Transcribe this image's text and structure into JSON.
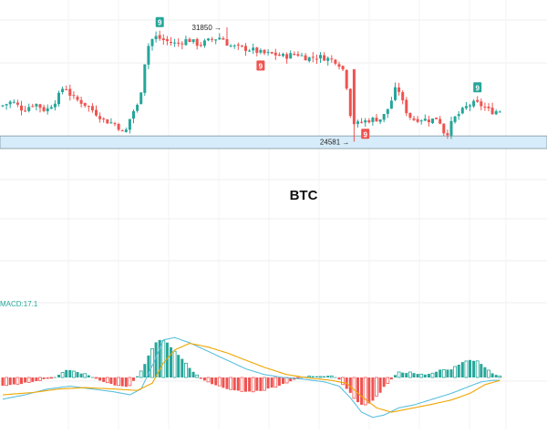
{
  "chart_data": [
    {
      "type": "candlestick",
      "title": "BTC",
      "x_range": [
        0,
        134
      ],
      "y_range": [
        22000,
        33600
      ],
      "support_zone": [
        24150,
        24950
      ],
      "annotations": {
        "high_label": "31850",
        "low_label": "24581",
        "high_value": 31850,
        "low_value": 24581,
        "high_index": 60,
        "low_index": 94
      },
      "td_markers": [
        {
          "index": 42,
          "label": "9",
          "position": "above",
          "color": "#26a69a"
        },
        {
          "index": 69,
          "label": "9",
          "position": "below",
          "color": "#ef5350"
        },
        {
          "index": 97,
          "label": "9",
          "position": "below",
          "color": "#ef5350"
        },
        {
          "index": 127,
          "label": "9",
          "position": "above",
          "color": "#26a69a"
        }
      ],
      "colors": {
        "up": "#26a69a",
        "down": "#ef5350",
        "zone_fill": "#d6ecfb",
        "zone_border": "#90a4ae"
      },
      "anchors": [
        [
          0,
          26850
        ],
        [
          3,
          27150
        ],
        [
          6,
          26600
        ],
        [
          9,
          27050
        ],
        [
          12,
          26550
        ],
        [
          15,
          27300
        ],
        [
          17,
          28200
        ],
        [
          19,
          27400
        ],
        [
          22,
          27050
        ],
        [
          25,
          26500
        ],
        [
          28,
          25900
        ],
        [
          31,
          25700
        ],
        [
          33,
          24950
        ],
        [
          35,
          26400
        ],
        [
          37,
          27000
        ],
        [
          39,
          30500
        ],
        [
          41,
          31300
        ],
        [
          44,
          31000
        ],
        [
          47,
          30800
        ],
        [
          50,
          31100
        ],
        [
          53,
          30750
        ],
        [
          56,
          31050
        ],
        [
          59,
          31250
        ],
        [
          61,
          30700
        ],
        [
          64,
          30550
        ],
        [
          67,
          30450
        ],
        [
          70,
          30200
        ],
        [
          73,
          30150
        ],
        [
          76,
          30000
        ],
        [
          79,
          30200
        ],
        [
          82,
          29900
        ],
        [
          85,
          30000
        ],
        [
          87,
          29900
        ],
        [
          90,
          29700
        ],
        [
          92,
          29000
        ],
        [
          94,
          25500
        ],
        [
          96,
          25800
        ],
        [
          99,
          26000
        ],
        [
          102,
          26050
        ],
        [
          104,
          26900
        ],
        [
          106,
          28200
        ],
        [
          108,
          26700
        ],
        [
          110,
          26000
        ],
        [
          112,
          26050
        ],
        [
          115,
          25950
        ],
        [
          117,
          26150
        ],
        [
          119,
          24900
        ],
        [
          121,
          26000
        ],
        [
          123,
          26450
        ],
        [
          125,
          26900
        ],
        [
          127,
          27050
        ],
        [
          129,
          26850
        ],
        [
          131,
          26500
        ],
        [
          133,
          26550
        ]
      ]
    },
    {
      "type": "macd",
      "indicator_label": "MACD:17.1",
      "x_range": [
        0,
        134
      ],
      "y_range": [
        -1.45,
        1.45
      ],
      "colors": {
        "hist_up": "#26a69a",
        "hist_down": "#ef5350",
        "macd_line": "#5bc0de",
        "signal_line": "#f0a500"
      },
      "hist_anchors": [
        [
          0,
          -0.28
        ],
        [
          5,
          -0.22
        ],
        [
          10,
          -0.1
        ],
        [
          14,
          0.0
        ],
        [
          16,
          0.12
        ],
        [
          18,
          0.28
        ],
        [
          20,
          0.2
        ],
        [
          23,
          0.1
        ],
        [
          25,
          0.0
        ],
        [
          27,
          -0.12
        ],
        [
          30,
          -0.25
        ],
        [
          32,
          -0.3
        ],
        [
          34,
          -0.35
        ],
        [
          36,
          -0.05
        ],
        [
          38,
          0.3
        ],
        [
          40,
          0.9
        ],
        [
          42,
          1.3
        ],
        [
          44,
          1.25
        ],
        [
          46,
          1.0
        ],
        [
          48,
          0.7
        ],
        [
          50,
          0.4
        ],
        [
          52,
          0.15
        ],
        [
          53,
          0.0
        ],
        [
          55,
          -0.15
        ],
        [
          58,
          -0.28
        ],
        [
          62,
          -0.45
        ],
        [
          66,
          -0.5
        ],
        [
          70,
          -0.45
        ],
        [
          74,
          -0.3
        ],
        [
          78,
          -0.1
        ],
        [
          80,
          0.0
        ],
        [
          83,
          0.05
        ],
        [
          86,
          0.05
        ],
        [
          88,
          0.08
        ],
        [
          90,
          0.0
        ],
        [
          92,
          -0.3
        ],
        [
          95,
          -0.8
        ],
        [
          97,
          -1.0
        ],
        [
          99,
          -0.85
        ],
        [
          101,
          -0.6
        ],
        [
          103,
          -0.25
        ],
        [
          105,
          0.0
        ],
        [
          106,
          0.2
        ],
        [
          108,
          0.15
        ],
        [
          110,
          0.18
        ],
        [
          112,
          0.12
        ],
        [
          114,
          0.1
        ],
        [
          116,
          0.15
        ],
        [
          118,
          0.3
        ],
        [
          120,
          0.25
        ],
        [
          122,
          0.4
        ],
        [
          124,
          0.55
        ],
        [
          126,
          0.6
        ],
        [
          128,
          0.55
        ],
        [
          130,
          0.3
        ],
        [
          132,
          0.1
        ],
        [
          133,
          0.05
        ]
      ],
      "macd_anchors": [
        [
          0,
          -0.75
        ],
        [
          6,
          -0.6
        ],
        [
          12,
          -0.4
        ],
        [
          18,
          -0.3
        ],
        [
          24,
          -0.4
        ],
        [
          30,
          -0.5
        ],
        [
          34,
          -0.6
        ],
        [
          37,
          -0.4
        ],
        [
          40,
          0.4
        ],
        [
          43,
          1.3
        ],
        [
          46,
          1.38
        ],
        [
          50,
          1.2
        ],
        [
          55,
          0.9
        ],
        [
          60,
          0.6
        ],
        [
          65,
          0.3
        ],
        [
          70,
          0.1
        ],
        [
          75,
          0.0
        ],
        [
          80,
          -0.05
        ],
        [
          86,
          -0.15
        ],
        [
          90,
          -0.3
        ],
        [
          93,
          -0.7
        ],
        [
          96,
          -1.2
        ],
        [
          99,
          -1.38
        ],
        [
          102,
          -1.3
        ],
        [
          106,
          -1.05
        ],
        [
          110,
          -0.95
        ],
        [
          115,
          -0.75
        ],
        [
          120,
          -0.55
        ],
        [
          125,
          -0.3
        ],
        [
          128,
          -0.15
        ],
        [
          131,
          -0.1
        ],
        [
          133,
          -0.1
        ]
      ],
      "signal_anchors": [
        [
          0,
          -0.6
        ],
        [
          8,
          -0.52
        ],
        [
          15,
          -0.4
        ],
        [
          22,
          -0.35
        ],
        [
          30,
          -0.4
        ],
        [
          36,
          -0.45
        ],
        [
          40,
          -0.2
        ],
        [
          43,
          0.5
        ],
        [
          46,
          0.95
        ],
        [
          50,
          1.18
        ],
        [
          55,
          1.05
        ],
        [
          60,
          0.85
        ],
        [
          65,
          0.6
        ],
        [
          70,
          0.35
        ],
        [
          76,
          0.1
        ],
        [
          82,
          -0.02
        ],
        [
          88,
          -0.1
        ],
        [
          92,
          -0.2
        ],
        [
          96,
          -0.65
        ],
        [
          100,
          -1.05
        ],
        [
          104,
          -1.2
        ],
        [
          108,
          -1.1
        ],
        [
          114,
          -0.95
        ],
        [
          120,
          -0.78
        ],
        [
          125,
          -0.55
        ],
        [
          129,
          -0.25
        ],
        [
          133,
          -0.1
        ]
      ]
    }
  ]
}
